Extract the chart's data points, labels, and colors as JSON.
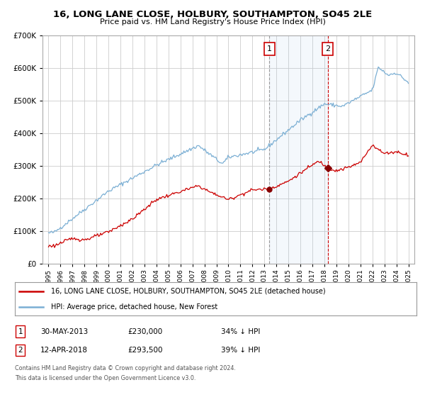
{
  "title": "16, LONG LANE CLOSE, HOLBURY, SOUTHAMPTON, SO45 2LE",
  "subtitle": "Price paid vs. HM Land Registry's House Price Index (HPI)",
  "legend_line1": "16, LONG LANE CLOSE, HOLBURY, SOUTHAMPTON, SO45 2LE (detached house)",
  "legend_line2": "HPI: Average price, detached house, New Forest",
  "sale1_date_label": "30-MAY-2013",
  "sale1_price_label": "£230,000",
  "sale1_hpi_label": "34% ↓ HPI",
  "sale2_date_label": "12-APR-2018",
  "sale2_price_label": "£293,500",
  "sale2_hpi_label": "39% ↓ HPI",
  "sale1_year": 2013.41,
  "sale1_price": 230000,
  "sale2_year": 2018.27,
  "sale2_price": 293500,
  "hpi_color": "#7bafd4",
  "price_color": "#cc0000",
  "marker_color": "#880000",
  "background_color": "#ffffff",
  "grid_color": "#cccccc",
  "highlight_color": "#ddeeff",
  "footnote1": "Contains HM Land Registry data © Crown copyright and database right 2024.",
  "footnote2": "This data is licensed under the Open Government Licence v3.0.",
  "ylim": [
    0,
    700000
  ],
  "xlim_start": 1995,
  "xlim_end": 2025
}
